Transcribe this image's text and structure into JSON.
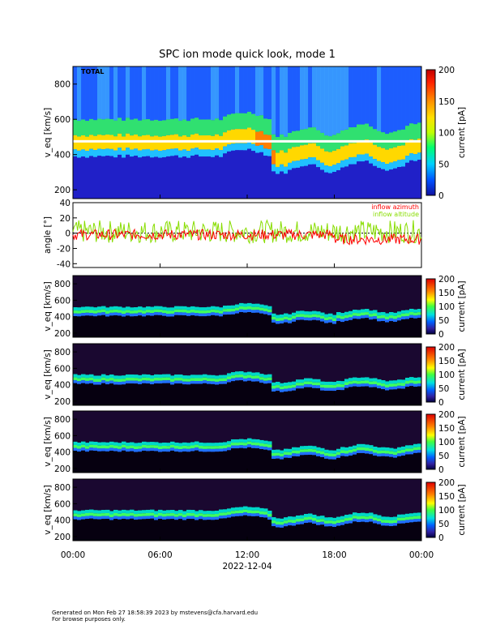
{
  "title": "SPC ion mode quick look, mode 1",
  "date_label": "2022-12-04",
  "footer": {
    "line1": "Generated on Mon Feb 27 18:58:39 2023 by mstevens@cfa.harvard.edu",
    "line2": "For browse purposes only."
  },
  "x_ticks": [
    "00:00",
    "06:00",
    "12:00",
    "18:00",
    "00:00"
  ],
  "colorbar": {
    "label": "current [pA]",
    "ticks": [
      "0",
      "50",
      "100",
      "150",
      "200"
    ]
  },
  "colors": {
    "azimuth": "#ff0000",
    "altitude": "#88dd00"
  },
  "chart_data": [
    {
      "type": "heatmap",
      "panel_label": "TOTAL",
      "xlabel": "",
      "ylabel": "v_eq [km/s]",
      "x": [
        "00:00",
        "06:00",
        "12:00",
        "18:00",
        "00:00"
      ],
      "y_ticks": [
        200,
        400,
        600,
        800
      ],
      "ylim": [
        150,
        900
      ],
      "colorbar": {
        "label": "current [pA]",
        "range": [
          0,
          200
        ],
        "ticks": [
          0,
          50,
          100,
          150,
          200
        ]
      },
      "grid": false
    },
    {
      "type": "line",
      "ylabel": "angle [°]",
      "ylim": [
        -45,
        40
      ],
      "y_ticks": [
        40,
        20,
        0,
        -20,
        -40
      ],
      "series": [
        {
          "name": "inflow azimuth",
          "color": "#ff0000"
        },
        {
          "name": "inflow altitude",
          "color": "#88dd00"
        }
      ],
      "grid": false
    },
    {
      "type": "heatmap",
      "ylabel": "v_eq [km/s]",
      "y_ticks": [
        200,
        400,
        600,
        800
      ],
      "ylim": [
        150,
        900
      ],
      "colorbar": {
        "label": "current [pA]",
        "ticks": [
          0,
          50,
          100,
          150,
          200
        ]
      }
    },
    {
      "type": "heatmap",
      "ylabel": "v_eq [km/s]",
      "y_ticks": [
        200,
        400,
        600,
        800
      ],
      "ylim": [
        150,
        900
      ],
      "colorbar": {
        "label": "current [pA]",
        "ticks": [
          0,
          50,
          100,
          150,
          200
        ]
      }
    },
    {
      "type": "heatmap",
      "ylabel": "v_eq [km/s]",
      "y_ticks": [
        200,
        400,
        600,
        800
      ],
      "ylim": [
        150,
        900
      ],
      "colorbar": {
        "label": "current [pA]",
        "ticks": [
          0,
          50,
          100,
          150,
          200
        ]
      }
    },
    {
      "type": "heatmap",
      "ylabel": "v_eq [km/s]",
      "y_ticks": [
        200,
        400,
        600,
        800
      ],
      "ylim": [
        150,
        900
      ],
      "colorbar": {
        "label": "current [pA]",
        "ticks": [
          0,
          50,
          100,
          150,
          200
        ]
      }
    }
  ]
}
